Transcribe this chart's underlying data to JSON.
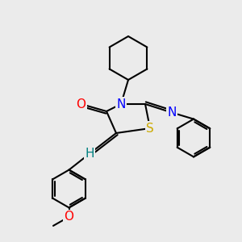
{
  "bg_color": "#ebebeb",
  "bond_color": "#000000",
  "bond_width": 1.5,
  "atom_colors": {
    "O": "#ff0000",
    "N": "#0000ff",
    "S": "#ccaa00",
    "H": "#008080",
    "C": "#000000"
  },
  "font_size": 10,
  "fig_size": [
    3.0,
    3.0
  ],
  "dpi": 100,
  "xlim": [
    0,
    10
  ],
  "ylim": [
    0,
    10
  ]
}
